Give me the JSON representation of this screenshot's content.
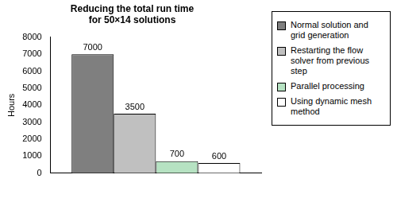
{
  "chart_data": {
    "type": "bar",
    "title": [
      "Reducing the total run time",
      "for 50×14 solutions"
    ],
    "ylabel": "Hours",
    "categories": [
      null
    ],
    "series": [
      {
        "name": "Normal solution and grid generation",
        "color": "#7f7f7f",
        "values": [
          7000
        ]
      },
      {
        "name": "Restarting the flow solver from previous step",
        "color": "#c0c0c0",
        "values": [
          3500
        ]
      },
      {
        "name": "Parallel processing",
        "color": "#b6e2c2",
        "values": [
          700
        ]
      },
      {
        "name": "Using dynamic mesh method",
        "color": "#ffffff",
        "values": [
          600
        ]
      }
    ],
    "ylim": [
      0,
      8000
    ],
    "yticks": [
      0,
      1000,
      2000,
      3000,
      4000,
      5000,
      6000,
      7000,
      8000
    ],
    "grid": false,
    "legend": "right",
    "data_labels": true
  }
}
